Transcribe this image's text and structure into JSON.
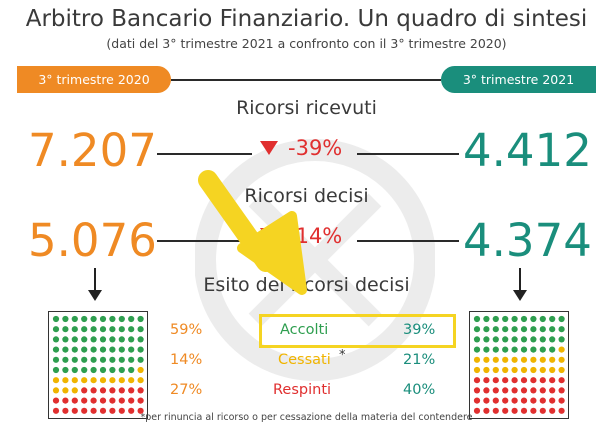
{
  "header": {
    "title": "Arbitro Bancario Finanziario. Un quadro di sintesi",
    "subtitle": "(dati del 3° trimestre 2021 a confronto con il 3° trimestre  2020)"
  },
  "periods": {
    "left": "3° trimestre 2020",
    "right": "3° trimestre 2021"
  },
  "ricorsi_ricevuti": {
    "label": "Ricorsi ricevuti",
    "value_2020": "7.207",
    "value_2021": "4.412",
    "change": "-39%"
  },
  "ricorsi_decisi": {
    "label": "Ricorsi decisi",
    "value_2020": "5.076",
    "value_2021": "4.374",
    "change": "-14%"
  },
  "esito": {
    "label": "Esito dei ricorsi decisi",
    "rows": [
      {
        "name": "Accolti",
        "pct_2020": "59%",
        "pct_2021": "39%",
        "color": "#2e9e4f"
      },
      {
        "name": "Cessati",
        "asterisk": "*",
        "pct_2020": "14%",
        "pct_2021": "21%",
        "color": "#f0b400"
      },
      {
        "name": "Respinti",
        "pct_2020": "27%",
        "pct_2021": "40%",
        "color": "#e02f2f"
      }
    ]
  },
  "footnote": "*per rinuncia al ricorso o per cessazione della materia del contendere",
  "colors": {
    "orange": "#ef8a24",
    "teal": "#1a8e7c",
    "red": "#e02f2f",
    "green": "#2e9e4f",
    "yellow": "#f0b400",
    "highlight": "#f5d422"
  },
  "dot_grids": {
    "left": {
      "accolti": 0.59,
      "cessati": 0.14,
      "respinti": 0.27
    },
    "right": {
      "accolti": 0.39,
      "cessati": 0.21,
      "respinti": 0.4
    }
  }
}
